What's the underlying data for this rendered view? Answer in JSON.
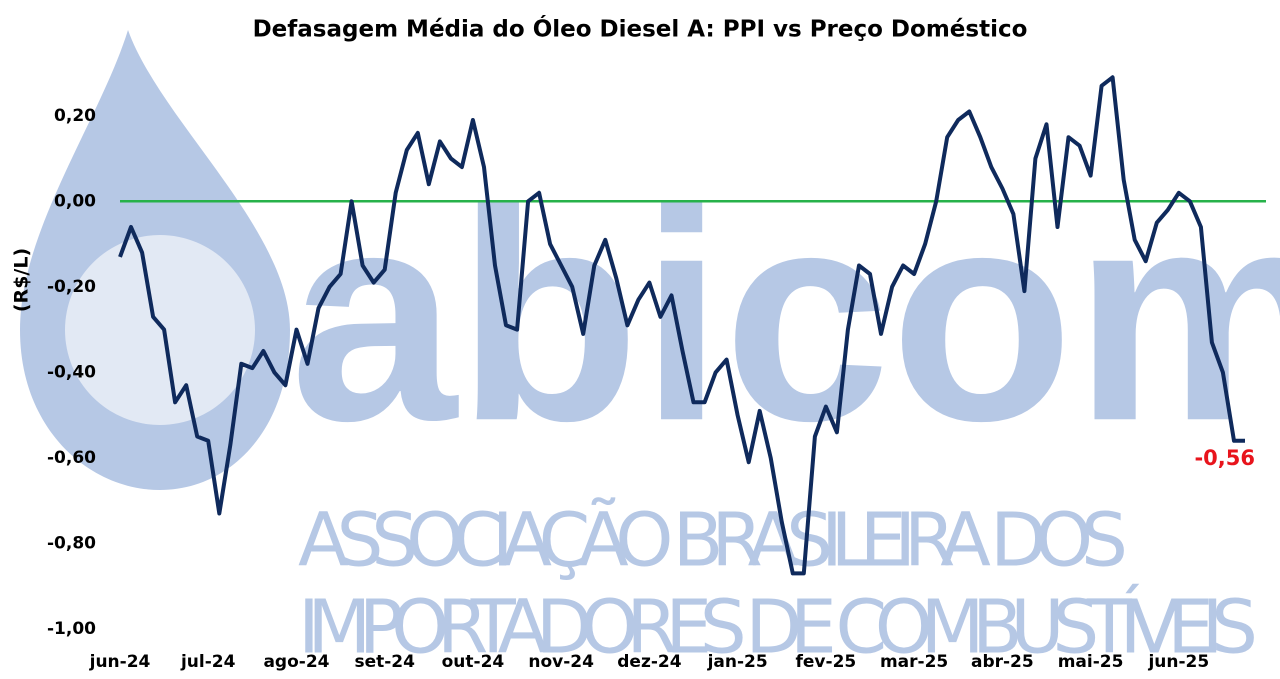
{
  "chart_data": {
    "type": "line",
    "title": "Defasagem Média do Óleo Diesel A: PPI vs Preço Doméstico",
    "y_label": "(R$/L)",
    "categories": [
      "jun-24",
      null,
      null,
      null,
      null,
      null,
      null,
      null,
      "jul-24",
      null,
      null,
      null,
      null,
      null,
      null,
      null,
      "ago-24",
      null,
      null,
      null,
      null,
      null,
      null,
      null,
      "set-24",
      null,
      null,
      null,
      null,
      null,
      null,
      null,
      "out-24",
      null,
      null,
      null,
      null,
      null,
      null,
      null,
      "nov-24",
      null,
      null,
      null,
      null,
      null,
      null,
      null,
      "dez-24",
      null,
      null,
      null,
      null,
      null,
      null,
      null,
      "jan-25",
      null,
      null,
      null,
      null,
      null,
      null,
      null,
      "fev-25",
      null,
      null,
      null,
      null,
      null,
      null,
      null,
      "mar-25",
      null,
      null,
      null,
      null,
      null,
      null,
      null,
      "abr-25",
      null,
      null,
      null,
      null,
      null,
      null,
      null,
      "mai-25",
      null,
      null,
      null,
      null,
      null,
      null,
      null,
      "jun-25",
      null,
      null,
      null,
      null,
      null,
      null
    ],
    "series": [
      {
        "color": "#0f2a5c",
        "values": [
          -0.13,
          -0.06,
          -0.12,
          -0.27,
          -0.3,
          -0.47,
          -0.43,
          -0.55,
          -0.56,
          -0.73,
          -0.57,
          -0.38,
          -0.39,
          -0.35,
          -0.4,
          -0.43,
          -0.3,
          -0.38,
          -0.25,
          -0.2,
          -0.17,
          0.0,
          -0.15,
          -0.19,
          -0.16,
          0.02,
          0.12,
          0.16,
          0.04,
          0.14,
          0.1,
          0.08,
          0.19,
          0.08,
          -0.15,
          -0.29,
          -0.3,
          0.0,
          0.02,
          -0.1,
          -0.15,
          -0.2,
          -0.31,
          -0.15,
          -0.09,
          -0.18,
          -0.29,
          -0.23,
          -0.19,
          -0.27,
          -0.22,
          -0.35,
          -0.47,
          -0.47,
          -0.4,
          -0.37,
          -0.5,
          -0.61,
          -0.49,
          -0.6,
          -0.75,
          -0.87,
          -0.87,
          -0.55,
          -0.48,
          -0.54,
          -0.3,
          -0.15,
          -0.17,
          -0.31,
          -0.2,
          -0.15,
          -0.17,
          -0.1,
          0.0,
          0.15,
          0.19,
          0.21,
          0.15,
          0.08,
          0.03,
          -0.03,
          -0.21,
          0.1,
          0.18,
          -0.06,
          0.15,
          0.13,
          0.06,
          0.27,
          0.29,
          0.05,
          -0.09,
          -0.14,
          -0.05,
          -0.02,
          0.02,
          0.0,
          -0.06,
          -0.33,
          -0.4,
          -0.56,
          -0.56
        ]
      }
    ],
    "annotations": [
      {
        "text": "-0,56",
        "color": "#e8141c"
      }
    ],
    "reference_line": {
      "value": 0,
      "color": "#27b24a"
    },
    "ylim": [
      -1.0,
      0.3
    ],
    "yticks": [
      {
        "value": -1.0,
        "label": "-1,00"
      },
      {
        "value": -0.8,
        "label": "-0,80"
      },
      {
        "value": -0.6,
        "label": "-0,60"
      },
      {
        "value": -0.4,
        "label": "-0,40"
      },
      {
        "value": -0.2,
        "label": "-0,20"
      },
      {
        "value": 0,
        "label": "0,00"
      },
      {
        "value": 0.2,
        "label": "0,20"
      }
    ],
    "grid": false,
    "watermark": {
      "logo": "abicom",
      "lines": [
        "ASSOCIAÇÃO BRASILEIRA DOS",
        "IMPORTADORES DE COMBUSTÍVEIS"
      ]
    }
  }
}
